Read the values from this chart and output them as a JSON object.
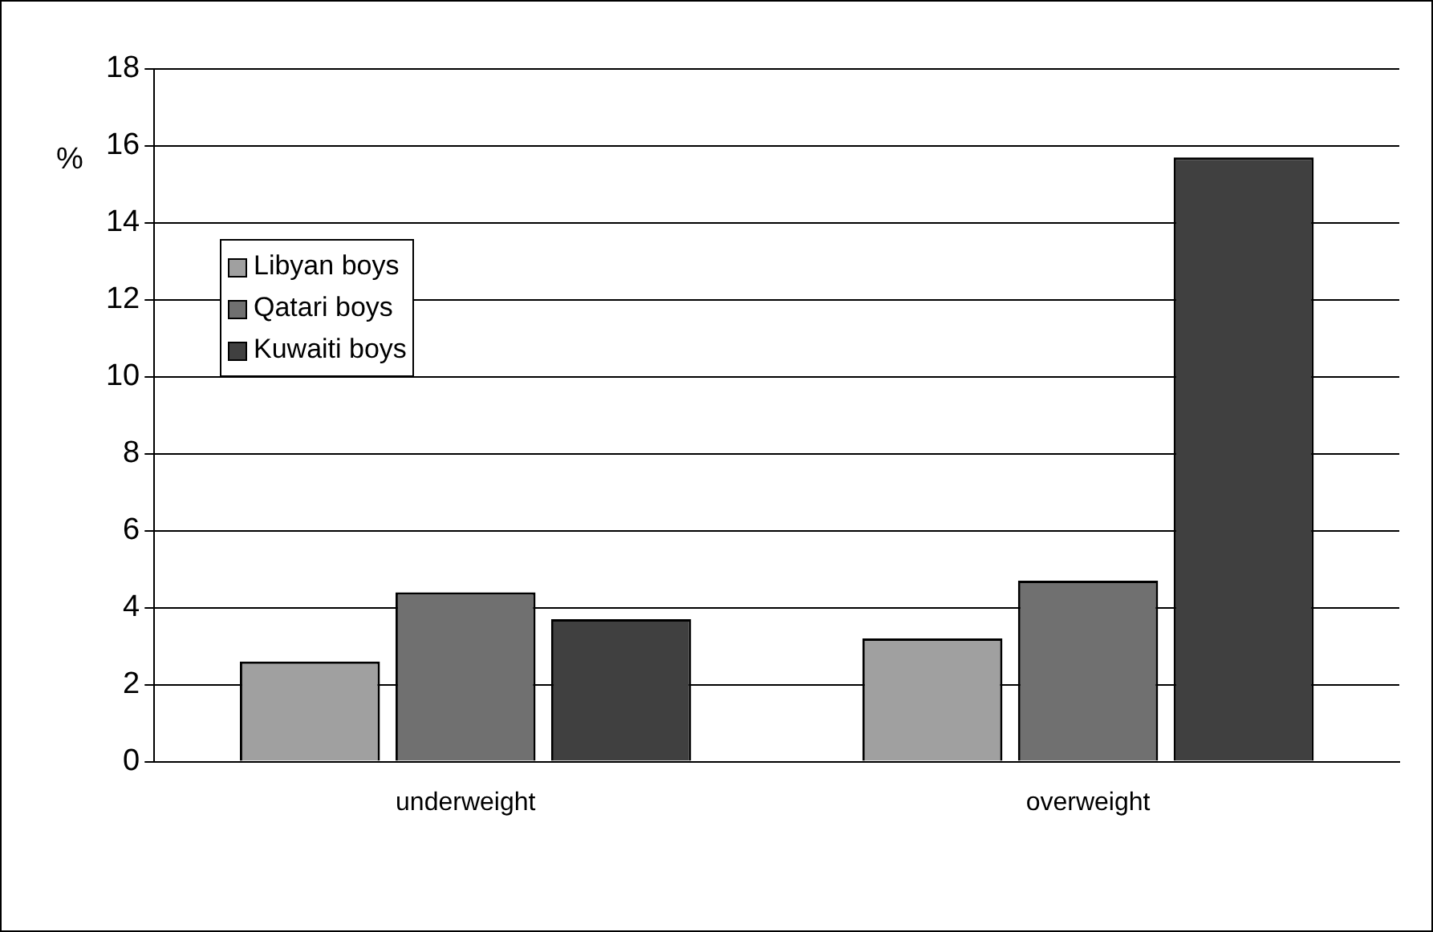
{
  "chart_data": {
    "type": "bar",
    "ylabel": "%",
    "categories": [
      "underweight",
      "overweight"
    ],
    "series": [
      {
        "name": "Libyan boys",
        "color": "#a0a0a0",
        "values": [
          2.6,
          3.2
        ]
      },
      {
        "name": "Qatari boys",
        "color": "#707070",
        "values": [
          4.4,
          4.7
        ]
      },
      {
        "name": "Kuwaiti boys",
        "color": "#404040",
        "values": [
          3.7,
          15.7
        ]
      }
    ],
    "ylim": [
      0,
      18
    ],
    "yticks": [
      0,
      2,
      4,
      6,
      8,
      10,
      12,
      14,
      16,
      18
    ],
    "grid": "y",
    "legend": "top left"
  }
}
